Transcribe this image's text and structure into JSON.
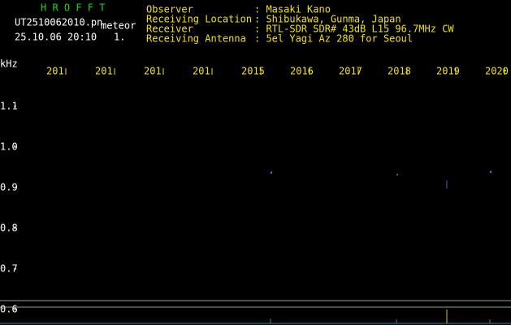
{
  "header": {
    "app": "H R O F F T",
    "file": "UT2510062010.pn",
    "mode": "meteor",
    "datetime": "25.10.06 20:10",
    "index": "1."
  },
  "info": [
    {
      "label": "Observer",
      "value": ": Masaki Kano"
    },
    {
      "label": "Receiving Location",
      "value": ": Shibukawa, Gunma, Japan"
    },
    {
      "label": "Receiver",
      "value": ": RTL-SDR SDR# 43dB L15 96.7MHz CW"
    },
    {
      "label": "Receiving Antenna",
      "value": ": 5el Yagi Az 280 for Seoul"
    }
  ],
  "axis": {
    "unit": "kHz",
    "x_labels": [
      "201",
      "201",
      "201",
      "201",
      "2015",
      "2016",
      "2017",
      "2018",
      "2019",
      "2020"
    ],
    "y_labels": [
      "1.1",
      "1.0",
      "0.9",
      "0.8",
      "0.7",
      "0.6"
    ]
  }
}
